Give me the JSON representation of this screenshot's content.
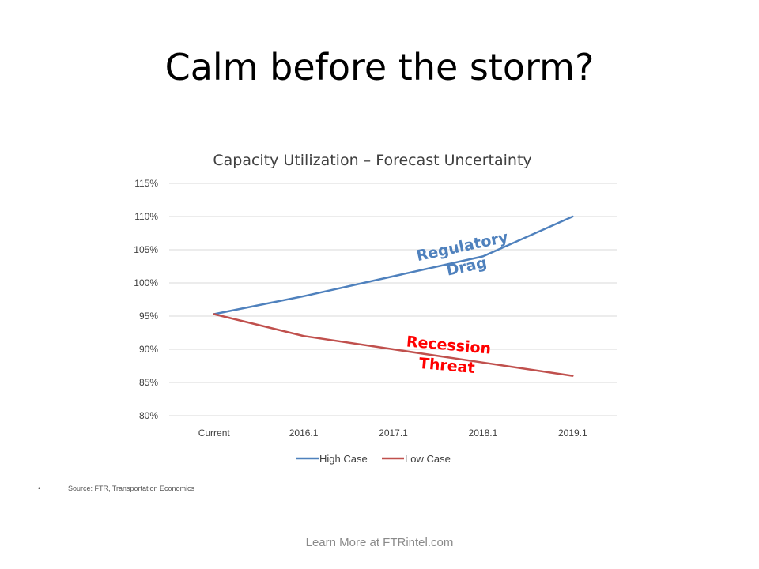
{
  "slide": {
    "title": "Calm before the storm?",
    "source_bullet": "•",
    "source": "Source: FTR, Transportation Economics",
    "footer": "Learn More at FTRintel.com"
  },
  "chart_data": {
    "type": "line",
    "title": "Capacity Utilization – Forecast Uncertainty",
    "categories": [
      "Current",
      "2016.1",
      "2017.1",
      "2018.1",
      "2019.1"
    ],
    "series": [
      {
        "name": "High Case",
        "values": [
          95.3,
          98.0,
          101.0,
          104.0,
          110.0
        ],
        "color": "#4f81bd"
      },
      {
        "name": "Low Case",
        "values": [
          95.3,
          92.0,
          90.0,
          88.0,
          86.0
        ],
        "color": "#c0504d"
      }
    ],
    "ylim": [
      80,
      115
    ],
    "yticks": [
      "80%",
      "85%",
      "90%",
      "95%",
      "100%",
      "105%",
      "110%",
      "115%"
    ],
    "grid": true,
    "legend": "bottom",
    "annotations": [
      {
        "lines": [
          "Regulatory",
          "Drag"
        ],
        "color": "#4f81bd"
      },
      {
        "lines": [
          "Recession",
          "Threat"
        ],
        "color": "#ff0000"
      }
    ]
  }
}
